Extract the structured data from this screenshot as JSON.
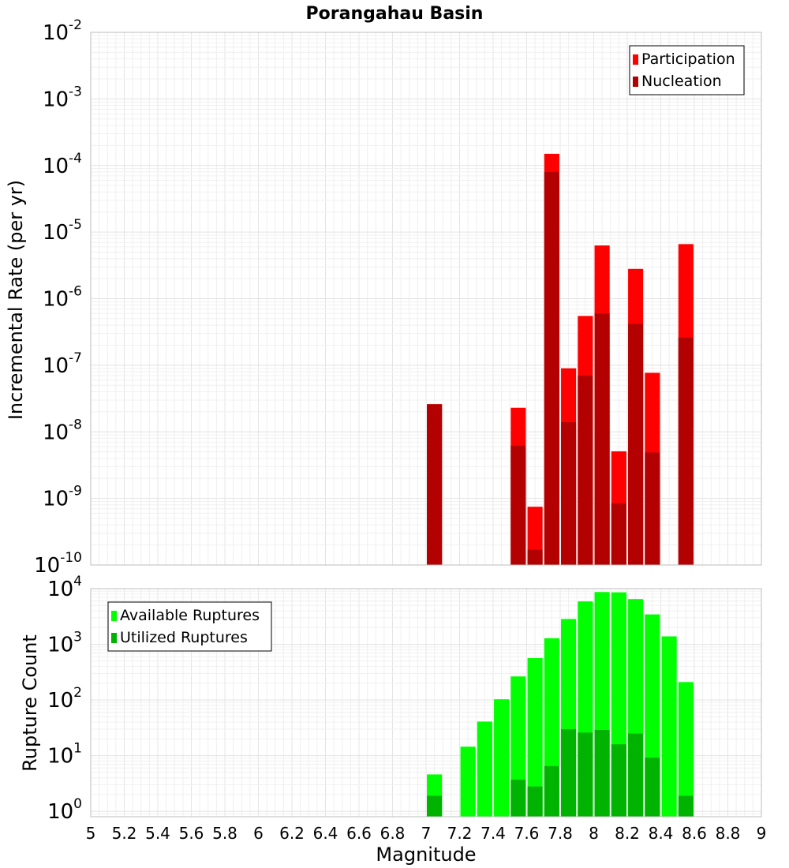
{
  "chart_data": [
    {
      "type": "bar",
      "title": "Porangahau Basin",
      "ylabel": "Incremental Rate (per yr)",
      "xlabel": "",
      "y_scale": "log",
      "xlim": [
        5,
        9
      ],
      "ylim": [
        1e-10,
        0.01
      ],
      "grid": true,
      "legend_position": "top-right",
      "bar_width": 0.09,
      "y_ticks": [
        {
          "base": "10",
          "exp": "-10",
          "value": 1e-10
        },
        {
          "base": "10",
          "exp": "-9",
          "value": 1e-09
        },
        {
          "base": "10",
          "exp": "-8",
          "value": 1e-08
        },
        {
          "base": "10",
          "exp": "-7",
          "value": 1e-07
        },
        {
          "base": "10",
          "exp": "-6",
          "value": 1e-06
        },
        {
          "base": "10",
          "exp": "-5",
          "value": 1e-05
        },
        {
          "base": "10",
          "exp": "-4",
          "value": 0.0001
        },
        {
          "base": "10",
          "exp": "-3",
          "value": 0.001
        },
        {
          "base": "10",
          "exp": "-2",
          "value": 0.01
        }
      ],
      "series": [
        {
          "name": "Participation",
          "color": "#ff0000",
          "points": [
            {
              "x": 7.05,
              "y": 2.6e-08
            },
            {
              "x": 7.55,
              "y": 2.3e-08
            },
            {
              "x": 7.65,
              "y": 7.5e-10
            },
            {
              "x": 7.75,
              "y": 0.00015
            },
            {
              "x": 7.85,
              "y": 9e-08
            },
            {
              "x": 7.95,
              "y": 5.5e-07
            },
            {
              "x": 8.05,
              "y": 6.3e-06
            },
            {
              "x": 8.15,
              "y": 5.1e-09
            },
            {
              "x": 8.25,
              "y": 2.8e-06
            },
            {
              "x": 8.35,
              "y": 7.7e-08
            },
            {
              "x": 8.55,
              "y": 6.6e-06
            }
          ]
        },
        {
          "name": "Nucleation",
          "color": "#b30000",
          "points": [
            {
              "x": 7.05,
              "y": 2.6e-08
            },
            {
              "x": 7.55,
              "y": 6.2e-09
            },
            {
              "x": 7.65,
              "y": 1.7e-10
            },
            {
              "x": 7.75,
              "y": 8e-05
            },
            {
              "x": 7.85,
              "y": 1.4e-08
            },
            {
              "x": 7.95,
              "y": 7e-08
            },
            {
              "x": 8.05,
              "y": 6e-07
            },
            {
              "x": 8.15,
              "y": 8.5e-10
            },
            {
              "x": 8.25,
              "y": 4.2e-07
            },
            {
              "x": 8.35,
              "y": 4.9e-09
            },
            {
              "x": 8.55,
              "y": 2.6e-07
            }
          ]
        }
      ]
    },
    {
      "type": "bar",
      "title": "",
      "ylabel": "Rupture Count",
      "xlabel": "Magnitude",
      "y_scale": "log",
      "xlim": [
        5,
        9
      ],
      "ylim": [
        0.8,
        10000
      ],
      "grid": true,
      "legend_position": "top-left",
      "bar_width": 0.09,
      "x_ticks": [
        "5",
        "5.2",
        "5.4",
        "5.6",
        "5.8",
        "6",
        "6.2",
        "6.4",
        "6.6",
        "6.8",
        "7",
        "7.2",
        "7.4",
        "7.6",
        "7.8",
        "8",
        "8.2",
        "8.4",
        "8.6",
        "8.8",
        "9"
      ],
      "y_ticks": [
        {
          "base": "10",
          "exp": "0",
          "value": 1
        },
        {
          "base": "10",
          "exp": "1",
          "value": 10
        },
        {
          "base": "10",
          "exp": "2",
          "value": 100
        },
        {
          "base": "10",
          "exp": "3",
          "value": 1000
        },
        {
          "base": "10",
          "exp": "4",
          "value": 10000
        }
      ],
      "series": [
        {
          "name": "Available Ruptures",
          "color": "#00ff00",
          "points": [
            {
              "x": 7.05,
              "y": 4.6
            },
            {
              "x": 7.25,
              "y": 14.5
            },
            {
              "x": 7.35,
              "y": 41
            },
            {
              "x": 7.45,
              "y": 103
            },
            {
              "x": 7.55,
              "y": 265
            },
            {
              "x": 7.65,
              "y": 565
            },
            {
              "x": 7.75,
              "y": 1290
            },
            {
              "x": 7.85,
              "y": 2850
            },
            {
              "x": 7.95,
              "y": 5900
            },
            {
              "x": 8.05,
              "y": 8700
            },
            {
              "x": 8.15,
              "y": 8600
            },
            {
              "x": 8.25,
              "y": 6500
            },
            {
              "x": 8.35,
              "y": 3450
            },
            {
              "x": 8.45,
              "y": 1390
            },
            {
              "x": 8.55,
              "y": 210
            }
          ]
        },
        {
          "name": "Utilized Ruptures",
          "color": "#00b300",
          "points": [
            {
              "x": 7.05,
              "y": 1.9
            },
            {
              "x": 7.55,
              "y": 3.7
            },
            {
              "x": 7.65,
              "y": 2.8
            },
            {
              "x": 7.75,
              "y": 6.5
            },
            {
              "x": 7.85,
              "y": 30
            },
            {
              "x": 7.95,
              "y": 26
            },
            {
              "x": 8.05,
              "y": 29
            },
            {
              "x": 8.15,
              "y": 16
            },
            {
              "x": 8.25,
              "y": 25
            },
            {
              "x": 8.35,
              "y": 9.2
            },
            {
              "x": 8.55,
              "y": 1.9
            }
          ]
        }
      ]
    }
  ]
}
